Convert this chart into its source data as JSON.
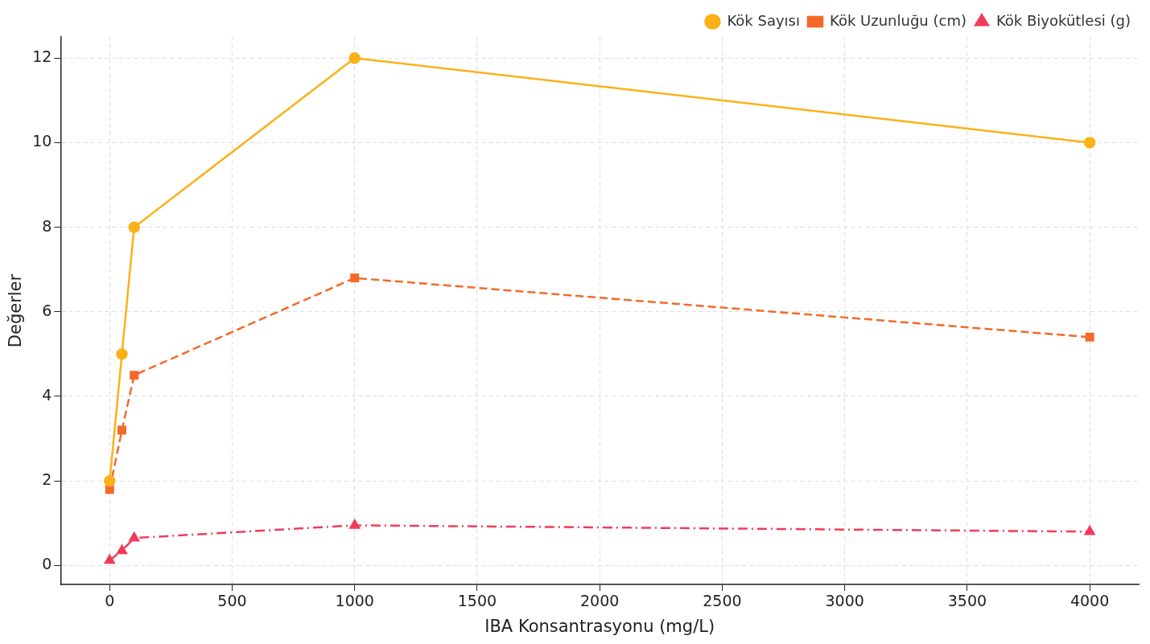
{
  "chart_data": {
    "type": "line",
    "xlabel": "IBA Konsantrasyonu (mg/L)",
    "ylabel": "Değerler",
    "x": [
      0,
      50,
      100,
      1000,
      4000
    ],
    "series": [
      {
        "name": "Kök Sayısı",
        "color": "#fbb117",
        "values": [
          2,
          5,
          8,
          12,
          10
        ],
        "marker": "circle",
        "line_style": "solid"
      },
      {
        "name": "Kök Uzunluğu (cm)",
        "color": "#f4692a",
        "values": [
          1.8,
          3.2,
          4.5,
          6.8,
          5.4
        ],
        "marker": "square",
        "line_style": "dashed"
      },
      {
        "name": "Kök Biyokütlesi (g)",
        "color": "#f23a5c",
        "values": [
          0.12,
          0.35,
          0.65,
          0.95,
          0.8
        ],
        "marker": "triangle",
        "line_style": "dashdot"
      }
    ],
    "xlim": [
      -200,
      4200
    ],
    "xticks": [
      0,
      500,
      1000,
      1500,
      2000,
      2500,
      3000,
      3500,
      4000
    ],
    "ylim": [
      -0.45,
      12.5
    ],
    "yticks": [
      0,
      2,
      4,
      6,
      8,
      10,
      12
    ],
    "grid": true,
    "legend": "top right"
  }
}
